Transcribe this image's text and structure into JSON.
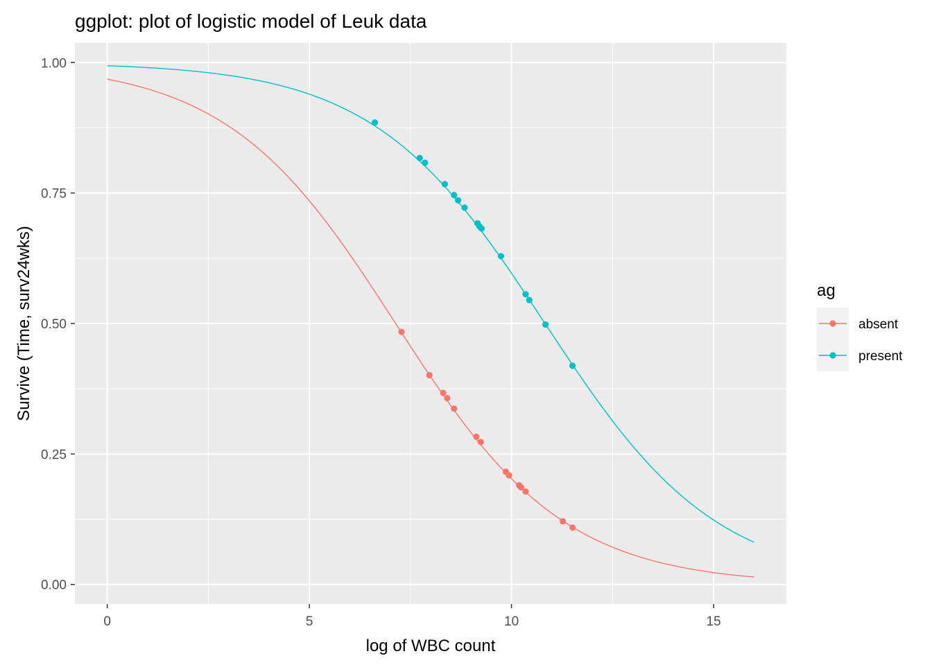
{
  "chart_data": {
    "type": "line",
    "title": "ggplot: plot of logistic model of Leuk data",
    "xlabel": "log of WBC count",
    "ylabel": "Survive (Time, surv24wks)",
    "xlim": [
      -0.8,
      16.8
    ],
    "ylim": [
      -0.0375,
      1.0375
    ],
    "x_ticks": [
      0,
      5,
      10,
      15
    ],
    "x_tick_labels": [
      "0",
      "5",
      "10",
      "15"
    ],
    "y_ticks": [
      0,
      0.25,
      0.5,
      0.75,
      1.0
    ],
    "y_tick_labels": [
      "0.00",
      "0.25",
      "0.50",
      "0.75",
      "1.00"
    ],
    "grid": true,
    "legend": {
      "title": "ag",
      "position": "right"
    },
    "curve_range": [
      0,
      16
    ],
    "series": [
      {
        "name": "absent",
        "color": "#F8766D",
        "curve": {
          "intercept": 3.41,
          "slope": -0.478
        },
        "points": [
          [
            7.28,
            0.484
          ],
          [
            7.97,
            0.401
          ],
          [
            8.31,
            0.367
          ],
          [
            8.41,
            0.357
          ],
          [
            8.58,
            0.337
          ],
          [
            9.13,
            0.283
          ],
          [
            9.24,
            0.273
          ],
          [
            9.86,
            0.216
          ],
          [
            9.94,
            0.209
          ],
          [
            10.19,
            0.19
          ],
          [
            10.24,
            0.186
          ],
          [
            10.35,
            0.178
          ],
          [
            11.27,
            0.121
          ],
          [
            11.51,
            0.109
          ]
        ]
      },
      {
        "name": "present",
        "color": "#00BFC4",
        "curve": {
          "intercept": 5.09,
          "slope": -0.47
        },
        "points": [
          [
            6.62,
            0.885
          ],
          [
            7.73,
            0.817
          ],
          [
            7.86,
            0.808
          ],
          [
            8.35,
            0.767
          ],
          [
            8.58,
            0.746
          ],
          [
            8.68,
            0.736
          ],
          [
            8.84,
            0.722
          ],
          [
            9.16,
            0.692
          ],
          [
            9.21,
            0.686
          ],
          [
            9.26,
            0.682
          ],
          [
            9.74,
            0.629
          ],
          [
            10.35,
            0.556
          ],
          [
            10.44,
            0.545
          ],
          [
            10.84,
            0.498
          ],
          [
            11.51,
            0.419
          ]
        ]
      }
    ]
  }
}
